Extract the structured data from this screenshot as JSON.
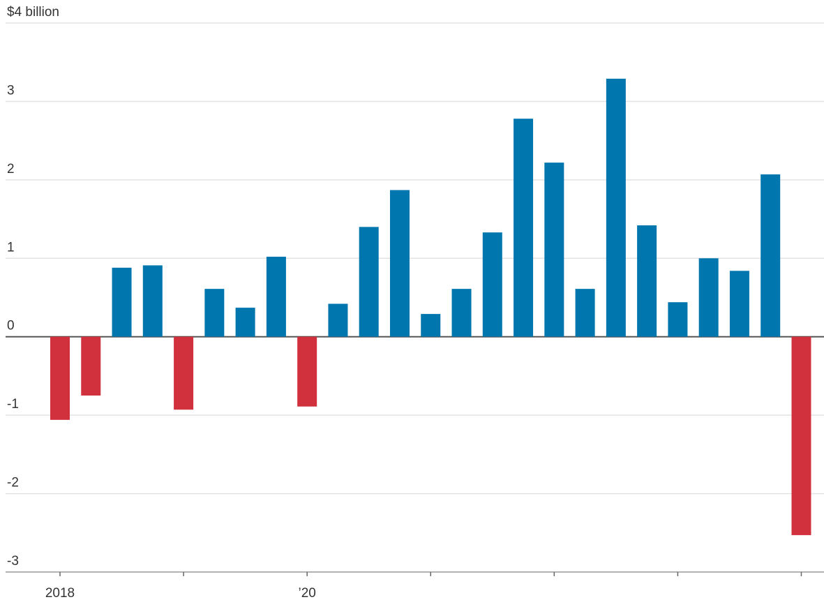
{
  "chart_data": {
    "type": "bar",
    "categories": [
      "2018",
      null,
      null,
      null,
      null,
      null,
      null,
      null,
      "’20",
      null,
      null,
      null,
      null,
      null,
      null,
      null,
      null,
      null,
      null,
      null,
      null,
      null,
      null,
      null,
      null
    ],
    "values": [
      -1.06,
      -0.75,
      0.88,
      0.91,
      -0.93,
      0.61,
      0.37,
      1.02,
      -0.89,
      0.42,
      1.4,
      1.87,
      0.29,
      0.61,
      1.33,
      2.78,
      2.22,
      0.61,
      3.29,
      1.42,
      0.44,
      1.0,
      0.84,
      2.07,
      -2.53
    ],
    "colors": {
      "positive": "#0076ae",
      "negative": "#d1313d"
    },
    "ylim": [
      -3,
      4
    ],
    "yticks": [
      -3,
      -2,
      -1,
      0,
      1,
      2,
      3,
      {
        "value": 4,
        "label": "$4 billion"
      }
    ],
    "grid": true
  }
}
